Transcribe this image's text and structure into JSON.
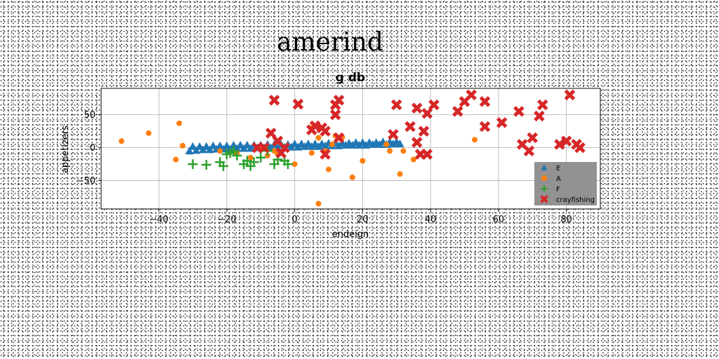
{
  "figure": {
    "suptitle": "amerind"
  },
  "chart_data": {
    "type": "scatter",
    "title": "g db",
    "xlabel": "endeign",
    "ylabel": "appetizers",
    "xlim": [
      -57,
      90
    ],
    "ylim": [
      -93,
      90
    ],
    "xticks": [
      -40,
      -20,
      0,
      20,
      40,
      60,
      80
    ],
    "yticks": [
      -50,
      0,
      50
    ],
    "grid": true,
    "legend_position": "lower right",
    "series": [
      {
        "name": "E",
        "marker": "triangle",
        "color": "#1f77b4",
        "x": [
          -31,
          -30,
          -29,
          -28,
          -27,
          -26,
          -25,
          -24,
          -23,
          -22,
          -21,
          -20,
          -19,
          -18,
          -17,
          -16,
          -15,
          -14,
          -13,
          -12,
          -11,
          -10,
          -9,
          -8,
          -7,
          -6,
          -5,
          -4,
          -3,
          -2,
          -1,
          0,
          1,
          2,
          3,
          4,
          5,
          6,
          7,
          8,
          9,
          10,
          11,
          12,
          13,
          14,
          15,
          16,
          17,
          18,
          19,
          20,
          21,
          22,
          23,
          24,
          25,
          26,
          27,
          28,
          29,
          30,
          31
        ],
        "y": [
          -5,
          2,
          -4,
          2,
          -3,
          2,
          -3,
          3,
          -2,
          3,
          -2,
          3,
          -2,
          4,
          -1,
          4,
          -1,
          4,
          -1,
          4,
          0,
          4,
          0,
          5,
          0,
          5,
          0,
          5,
          1,
          5,
          1,
          6,
          1,
          6,
          2,
          6,
          2,
          6,
          2,
          6,
          3,
          7,
          3,
          7,
          3,
          7,
          4,
          7,
          4,
          8,
          4,
          8,
          4,
          8,
          5,
          8,
          5,
          9,
          5,
          9,
          6,
          9,
          6
        ]
      },
      {
        "name": "A",
        "marker": "circle",
        "color": "#ff7f0e",
        "x": [
          -51,
          -43,
          -34,
          -33,
          -35,
          -22,
          -17,
          -13,
          -10,
          -8,
          -5,
          0,
          5,
          7,
          9,
          11,
          12,
          14,
          10,
          17,
          20,
          27,
          28,
          31,
          32,
          35,
          53,
          7,
          5,
          -6
        ],
        "y": [
          10,
          22,
          37,
          3,
          -18,
          -5,
          -8,
          -15,
          3,
          -12,
          -10,
          -25,
          30,
          15,
          -5,
          5,
          18,
          16,
          -33,
          -45,
          -20,
          5,
          -5,
          -40,
          -5,
          -18,
          12,
          -85,
          -8,
          -5
        ]
      },
      {
        "name": "F",
        "marker": "plus",
        "color": "#2ca02c",
        "x": [
          -30,
          -26,
          -22,
          -21,
          -20,
          -19,
          -18,
          -17,
          -15,
          -14,
          -13,
          -12,
          -10,
          -8,
          -6,
          -5,
          -3,
          -2
        ],
        "y": [
          -25,
          -26,
          -22,
          -28,
          -10,
          -8,
          -5,
          -12,
          -25,
          -20,
          -28,
          -22,
          -15,
          -5,
          -25,
          -18,
          -20,
          -25
        ]
      },
      {
        "name": "crayfishing",
        "marker": "x",
        "color": "#d62728",
        "x": [
          -6,
          1,
          5,
          9,
          6,
          8,
          12,
          13,
          12,
          -7,
          -5,
          -9,
          -11,
          -3,
          -4,
          9,
          13,
          30,
          29,
          34,
          36,
          39,
          38,
          41,
          39,
          36,
          37,
          48,
          50,
          52,
          56,
          56,
          61,
          66,
          67,
          69,
          70,
          72,
          73,
          78,
          80,
          81,
          83,
          84
        ],
        "y": [
          72,
          66,
          27,
          25,
          33,
          30,
          50,
          72,
          65,
          22,
          10,
          0,
          0,
          0,
          -8,
          -10,
          15,
          65,
          20,
          32,
          60,
          52,
          25,
          65,
          -10,
          8,
          -10,
          55,
          70,
          80,
          70,
          32,
          38,
          55,
          5,
          -5,
          15,
          48,
          65,
          5,
          10,
          80,
          5,
          0
        ]
      }
    ]
  }
}
